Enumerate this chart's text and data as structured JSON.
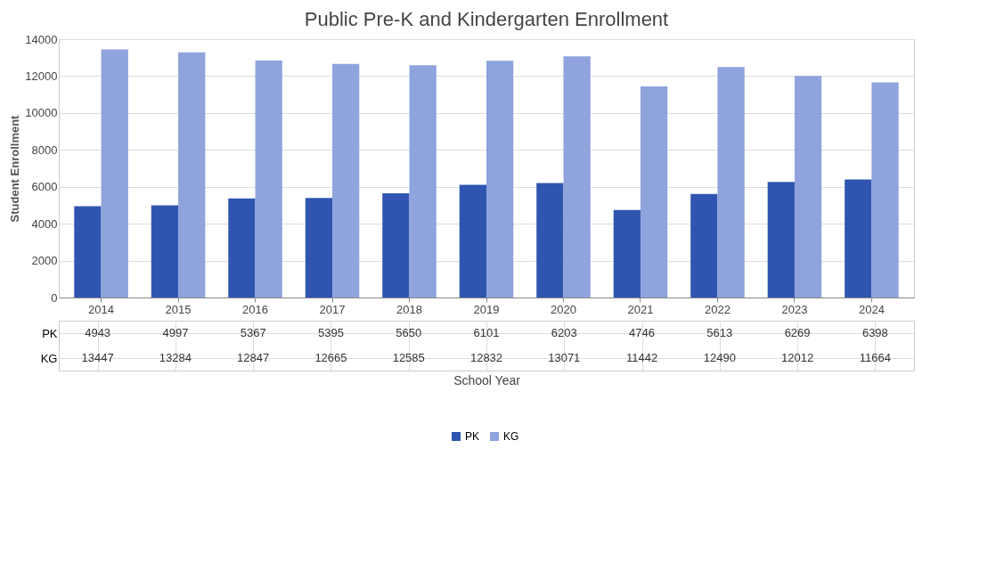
{
  "chart_data": {
    "type": "bar",
    "title": "Public Pre-K and Kindergarten Enrollment",
    "xlabel": "School Year",
    "ylabel": "Student Enrollment",
    "categories": [
      "2014",
      "2015",
      "2016",
      "2017",
      "2018",
      "2019",
      "2020",
      "2021",
      "2022",
      "2023",
      "2024"
    ],
    "series": [
      {
        "name": "PK",
        "color": "#2f55b0",
        "values": [
          4943,
          4997,
          5367,
          5395,
          5650,
          6101,
          6203,
          4746,
          5613,
          6269,
          6398
        ]
      },
      {
        "name": "KG",
        "color": "#8fa3dc",
        "values": [
          13447,
          13284,
          12847,
          12665,
          12585,
          12832,
          13071,
          11442,
          12490,
          12012,
          11664
        ]
      }
    ],
    "ylim": [
      0,
      14000
    ],
    "yticks": [
      0,
      2000,
      4000,
      6000,
      8000,
      10000,
      12000,
      14000
    ],
    "grid": "y",
    "legend": "bottom",
    "data_labels": true
  }
}
